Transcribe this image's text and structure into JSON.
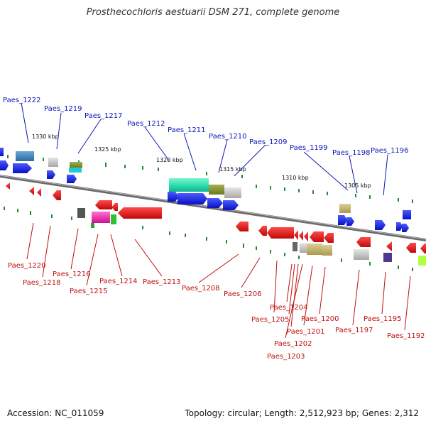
{
  "title": "Prosthecochloris aestuarii DSM 271, complete genome",
  "footer": {
    "accession": "Accession: NC_011059",
    "stats": "Topology: circular; Length: 2,512,923 bp; Genes: 2,312"
  },
  "colors": {
    "forward_gene": "#1414e6",
    "reverse_gene": "#e61414",
    "top_label": "#0a16b8",
    "bottom_label": "#c01010",
    "tick": "#2a8a2a",
    "backbone": "#7a7a7a"
  },
  "kbp_marks": [
    "1330 kbp",
    "1325 kbp",
    "1320 kbp",
    "1315 kbp",
    "1310 kbp",
    "1305 kbp"
  ],
  "top_labels": [
    "Paes_1222",
    "Paes_1219",
    "Paes_1217",
    "Paes_1212",
    "Paes_1211",
    "Paes_1210",
    "Paes_1209",
    "Paes_1199",
    "Paes_1198",
    "Paes_1196"
  ],
  "bottom_labels": [
    "Paes_1220",
    "Paes_1218",
    "Paes_1216",
    "Paes_1215",
    "Paes_1214",
    "Paes_1213",
    "Paes_1208",
    "Paes_1206",
    "Paes_1204",
    "Paes_1205",
    "Paes_1201",
    "Paes_1202",
    "Paes_1203",
    "Paes_1200",
    "Paes_1197",
    "Paes_1195",
    "Paes_1192"
  ]
}
